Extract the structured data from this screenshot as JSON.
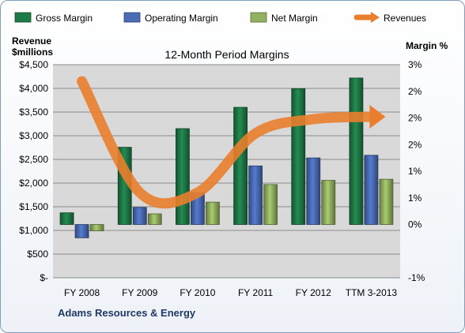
{
  "chart_data": {
    "type": "bar",
    "title": "12-Month Period Margins",
    "company": "Adams Resources & Energy",
    "categories": [
      "FY 2008",
      "FY 2009",
      "FY 2010",
      "FY 2011",
      "FY 2012",
      "TTM 3-2013"
    ],
    "left_axis": {
      "title_line1": "Revenue",
      "title_line2": "$millions",
      "min": 0,
      "max": 4500,
      "ticks": [
        0,
        500,
        1000,
        1500,
        2000,
        2500,
        3000,
        3500,
        4000,
        4500
      ],
      "tick_labels": [
        "$-",
        "$500",
        "$1,000",
        "$1,500",
        "$2,000",
        "$2,500",
        "$3,000",
        "$3,500",
        "$4,000",
        "$4,500"
      ]
    },
    "right_axis": {
      "title": "Margin %",
      "min": -1,
      "max": 3,
      "ticks": [
        -1,
        0,
        0.5,
        1,
        1.5,
        2,
        2.5,
        3
      ],
      "tick_labels": [
        "-1%",
        "0%",
        "1%",
        "1%",
        "2%",
        "2%",
        "2%",
        "3%"
      ]
    },
    "series": [
      {
        "name": "Gross Margin",
        "axis": "right",
        "color": "#1e7a46",
        "values": [
          0.22,
          1.45,
          1.8,
          2.2,
          2.55,
          2.75
        ]
      },
      {
        "name": "Operating Margin",
        "axis": "right",
        "color": "#4a6bb5",
        "values": [
          -0.25,
          0.32,
          0.6,
          1.1,
          1.25,
          1.3
        ]
      },
      {
        "name": "Net Margin",
        "axis": "right",
        "color": "#93b160",
        "values": [
          -0.12,
          0.2,
          0.42,
          0.75,
          0.83,
          0.85
        ]
      },
      {
        "name": "Revenues",
        "axis": "left",
        "type": "line",
        "color": "#e97e2e",
        "values": [
          4150,
          1800,
          1800,
          3050,
          3350,
          3400
        ]
      }
    ],
    "grid": true,
    "legend": "top"
  }
}
